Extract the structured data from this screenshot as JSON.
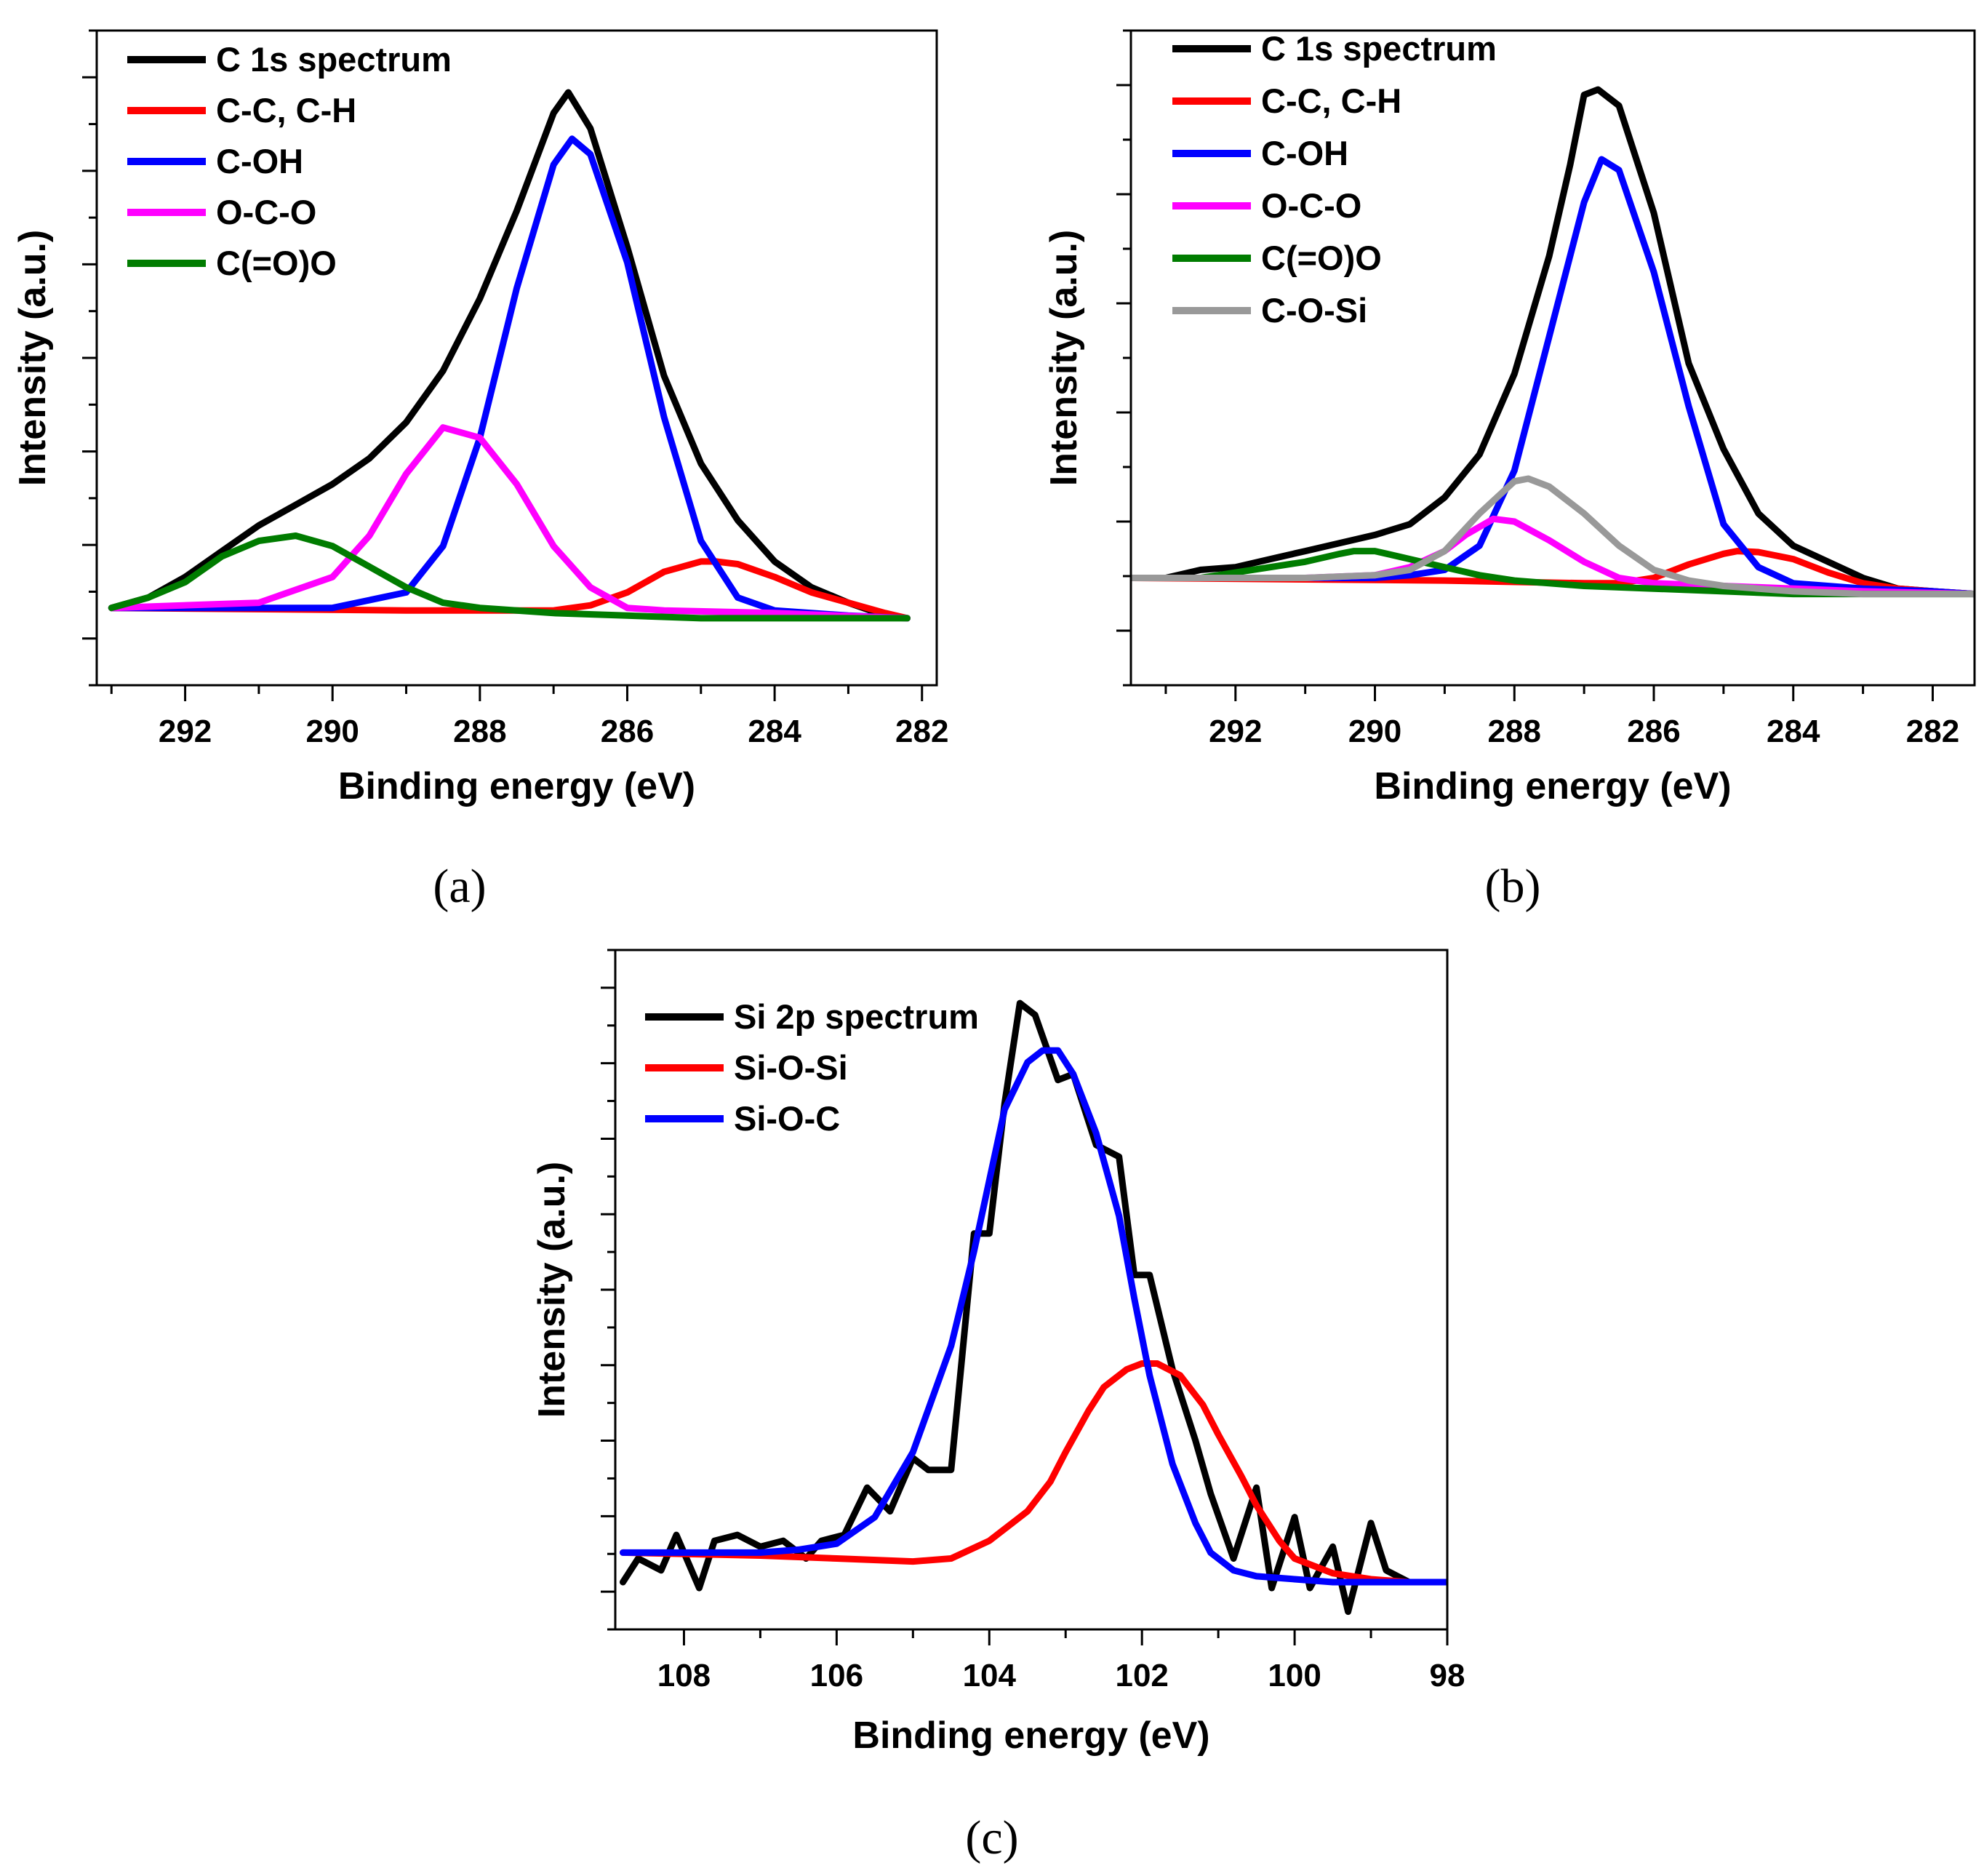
{
  "chart_data": [
    {
      "panel": "(a)",
      "type": "line",
      "xlabel": "Binding energy (eV)",
      "ylabel": "Intensity (a.u.)",
      "xlim": [
        293.2,
        281.8
      ],
      "xticks": [
        292,
        290,
        288,
        286,
        284,
        282
      ],
      "ylim": [
        -0.15,
        1.12
      ],
      "legend_position": "top-left",
      "series": [
        {
          "name": "C 1s spectrum",
          "color": "#000000",
          "x": [
            293,
            292.5,
            292,
            291.5,
            291,
            290.5,
            290,
            289.5,
            289,
            288.5,
            288,
            287.5,
            287,
            286.8,
            286.5,
            286,
            285.5,
            285,
            284.5,
            284,
            283.5,
            283,
            282.5,
            282.2
          ],
          "y": [
            0.0,
            0.02,
            0.06,
            0.11,
            0.16,
            0.2,
            0.24,
            0.29,
            0.36,
            0.46,
            0.6,
            0.77,
            0.96,
            1.0,
            0.93,
            0.7,
            0.45,
            0.28,
            0.17,
            0.09,
            0.04,
            0.01,
            -0.015,
            -0.02
          ]
        },
        {
          "name": "C-C, C-H",
          "color": "#ff0000",
          "x": [
            293,
            289,
            287,
            286.5,
            286,
            285.5,
            285,
            284.8,
            284.5,
            284,
            283.5,
            283,
            282.5,
            282.2
          ],
          "y": [
            0.0,
            -0.005,
            -0.005,
            0.005,
            0.03,
            0.07,
            0.09,
            0.09,
            0.085,
            0.06,
            0.03,
            0.01,
            -0.01,
            -0.02
          ]
        },
        {
          "name": "C-OH",
          "color": "#0000ff",
          "x": [
            293,
            290,
            289,
            288.5,
            288,
            287.5,
            287,
            286.75,
            286.5,
            286,
            285.5,
            285,
            284.5,
            284,
            283,
            282.2
          ],
          "y": [
            0.0,
            0.0,
            0.03,
            0.12,
            0.33,
            0.62,
            0.86,
            0.91,
            0.88,
            0.67,
            0.37,
            0.13,
            0.02,
            -0.005,
            -0.015,
            -0.02
          ]
        },
        {
          "name": "O-C-O",
          "color": "#ff00ff",
          "x": [
            293,
            291,
            290,
            289.5,
            289,
            288.5,
            288,
            287.5,
            287,
            286.5,
            286,
            285.5,
            284,
            282.2
          ],
          "y": [
            0.0,
            0.01,
            0.06,
            0.14,
            0.26,
            0.35,
            0.33,
            0.24,
            0.12,
            0.04,
            0.0,
            -0.005,
            -0.01,
            -0.02
          ]
        },
        {
          "name": "C(=O)O",
          "color": "#007c00",
          "x": [
            293,
            292.5,
            292,
            291.5,
            291,
            290.5,
            290,
            289.5,
            289,
            288.5,
            288,
            287.5,
            287,
            286,
            285,
            284,
            283,
            282.2
          ],
          "y": [
            0.0,
            0.02,
            0.05,
            0.1,
            0.13,
            0.14,
            0.12,
            0.08,
            0.04,
            0.01,
            0.0,
            -0.005,
            -0.01,
            -0.015,
            -0.02,
            -0.02,
            -0.02,
            -0.02
          ]
        }
      ]
    },
    {
      "panel": "(b)",
      "type": "line",
      "xlabel": "Binding energy (eV)",
      "ylabel": "Intensity (a.u.)",
      "xlim": [
        293.5,
        281.4
      ],
      "xticks": [
        292,
        290,
        288,
        286,
        284,
        282
      ],
      "ylim": [
        -0.2,
        1.02
      ],
      "legend_position": "top-left",
      "series": [
        {
          "name": "C 1s spectrum",
          "color": "#000000",
          "x": [
            293.5,
            293,
            292.5,
            292,
            291.5,
            291,
            290.5,
            290,
            289.5,
            289,
            288.5,
            288,
            287.5,
            287.2,
            287,
            286.8,
            286.5,
            286,
            285.5,
            285,
            284.5,
            284,
            283.5,
            283,
            282.5,
            282,
            281.4
          ],
          "y": [
            0.0,
            0.0,
            0.015,
            0.02,
            0.035,
            0.05,
            0.065,
            0.08,
            0.1,
            0.15,
            0.23,
            0.38,
            0.6,
            0.77,
            0.9,
            0.91,
            0.88,
            0.68,
            0.4,
            0.24,
            0.12,
            0.06,
            0.03,
            0.0,
            -0.02,
            -0.025,
            -0.03
          ]
        },
        {
          "name": "C-C, C-H",
          "color": "#ff0000",
          "x": [
            293.5,
            289,
            287,
            286.5,
            286,
            285.5,
            285,
            284.8,
            284.5,
            284,
            283.5,
            283,
            282.5,
            282,
            281.4
          ],
          "y": [
            0.0,
            -0.005,
            -0.01,
            -0.01,
            0.0,
            0.025,
            0.045,
            0.05,
            0.048,
            0.035,
            0.01,
            -0.01,
            -0.02,
            -0.025,
            -0.03
          ]
        },
        {
          "name": "C-OH",
          "color": "#0000ff",
          "x": [
            293.5,
            290,
            289.5,
            289,
            288.5,
            288,
            287.5,
            287,
            286.75,
            286.5,
            286,
            285.5,
            285,
            284.5,
            284,
            283,
            282,
            281.4
          ],
          "y": [
            0.0,
            0.0,
            0.005,
            0.015,
            0.06,
            0.2,
            0.45,
            0.7,
            0.78,
            0.76,
            0.57,
            0.32,
            0.1,
            0.02,
            -0.01,
            -0.02,
            -0.025,
            -0.03
          ]
        },
        {
          "name": "O-C-O",
          "color": "#ff00ff",
          "x": [
            293.5,
            291,
            290,
            289.5,
            289,
            288.7,
            288.3,
            288,
            287.5,
            287,
            286.5,
            286,
            285,
            283,
            281.4
          ],
          "y": [
            0.0,
            0.0,
            0.005,
            0.02,
            0.05,
            0.08,
            0.11,
            0.105,
            0.07,
            0.03,
            0.0,
            -0.01,
            -0.015,
            -0.025,
            -0.03
          ]
        },
        {
          "name": "C(=O)O",
          "color": "#007c00",
          "x": [
            293.5,
            292.5,
            292,
            291.5,
            291,
            290.5,
            290.3,
            290,
            289.5,
            289,
            288.5,
            288,
            287.5,
            287,
            286,
            285,
            284,
            283,
            282,
            281.4
          ],
          "y": [
            0.0,
            0.0,
            0.01,
            0.02,
            0.03,
            0.045,
            0.05,
            0.05,
            0.035,
            0.02,
            0.005,
            -0.005,
            -0.01,
            -0.015,
            -0.02,
            -0.025,
            -0.03,
            -0.03,
            -0.03,
            -0.03
          ]
        },
        {
          "name": "C-O-Si",
          "color": "#999999",
          "x": [
            293.5,
            291,
            290,
            289.5,
            289,
            288.5,
            288,
            287.8,
            287.5,
            287,
            286.5,
            286,
            285.5,
            285,
            284,
            283,
            282,
            281.4
          ],
          "y": [
            0.0,
            0.0,
            0.005,
            0.015,
            0.05,
            0.12,
            0.18,
            0.185,
            0.17,
            0.12,
            0.06,
            0.015,
            -0.005,
            -0.015,
            -0.025,
            -0.03,
            -0.03,
            -0.03
          ]
        }
      ]
    },
    {
      "panel": "(c)",
      "type": "line",
      "xlabel": "Binding energy (eV)",
      "ylabel": "Intensity (a.u.)",
      "xlim": [
        108.9,
        98
      ],
      "xticks": [
        108,
        106,
        104,
        102,
        100,
        98
      ],
      "ylim": [
        -0.1,
        1.05
      ],
      "legend_position": "top-left",
      "series": [
        {
          "name": "Si 2p spectrum",
          "color": "#000000",
          "x": [
            108.8,
            108.6,
            108.3,
            108.1,
            107.8,
            107.6,
            107.3,
            107.0,
            106.7,
            106.4,
            106.2,
            105.9,
            105.6,
            105.3,
            105.0,
            104.8,
            104.5,
            104.2,
            104.0,
            103.8,
            103.6,
            103.4,
            103.1,
            102.9,
            102.6,
            102.3,
            102.1,
            101.9,
            101.6,
            101.3,
            101.1,
            100.8,
            100.5,
            100.3,
            100.0,
            99.8,
            99.5,
            99.3,
            99.0,
            98.8,
            98.5,
            98.3,
            98.0
          ],
          "y": [
            -0.02,
            0.02,
            0.0,
            0.06,
            -0.03,
            0.05,
            0.06,
            0.04,
            0.05,
            0.02,
            0.05,
            0.06,
            0.14,
            0.1,
            0.19,
            0.17,
            0.17,
            0.57,
            0.57,
            0.79,
            0.96,
            0.94,
            0.83,
            0.84,
            0.72,
            0.7,
            0.5,
            0.5,
            0.34,
            0.22,
            0.13,
            0.02,
            0.14,
            -0.03,
            0.09,
            -0.03,
            0.04,
            -0.07,
            0.08,
            0.0,
            -0.02,
            -0.02,
            -0.02
          ]
        },
        {
          "name": "Si-O-Si",
          "color": "#ff0000",
          "x": [
            108.8,
            107,
            106,
            105,
            104.5,
            104,
            103.5,
            103.2,
            103,
            102.7,
            102.5,
            102.2,
            102.0,
            101.8,
            101.5,
            101.2,
            101.0,
            100.7,
            100.5,
            100.2,
            100.0,
            99.5,
            99.0,
            98.5,
            98.0
          ],
          "y": [
            0.03,
            0.025,
            0.02,
            0.015,
            0.02,
            0.05,
            0.1,
            0.15,
            0.2,
            0.27,
            0.31,
            0.34,
            0.35,
            0.35,
            0.33,
            0.28,
            0.23,
            0.16,
            0.11,
            0.05,
            0.02,
            -0.005,
            -0.015,
            -0.02,
            -0.02
          ]
        },
        {
          "name": "Si-O-C",
          "color": "#0000ff",
          "x": [
            108.8,
            107,
            106.5,
            106,
            105.5,
            105,
            104.5,
            104.2,
            104.0,
            103.8,
            103.5,
            103.3,
            103.1,
            102.9,
            102.6,
            102.3,
            102.1,
            101.9,
            101.6,
            101.3,
            101.1,
            100.8,
            100.5,
            100.0,
            99.5,
            99.0,
            98.5,
            98.0
          ],
          "y": [
            0.03,
            0.03,
            0.035,
            0.045,
            0.09,
            0.2,
            0.38,
            0.54,
            0.66,
            0.78,
            0.86,
            0.88,
            0.88,
            0.84,
            0.74,
            0.6,
            0.46,
            0.33,
            0.18,
            0.08,
            0.03,
            0.0,
            -0.01,
            -0.015,
            -0.02,
            -0.02,
            -0.02,
            -0.02
          ]
        }
      ]
    }
  ]
}
